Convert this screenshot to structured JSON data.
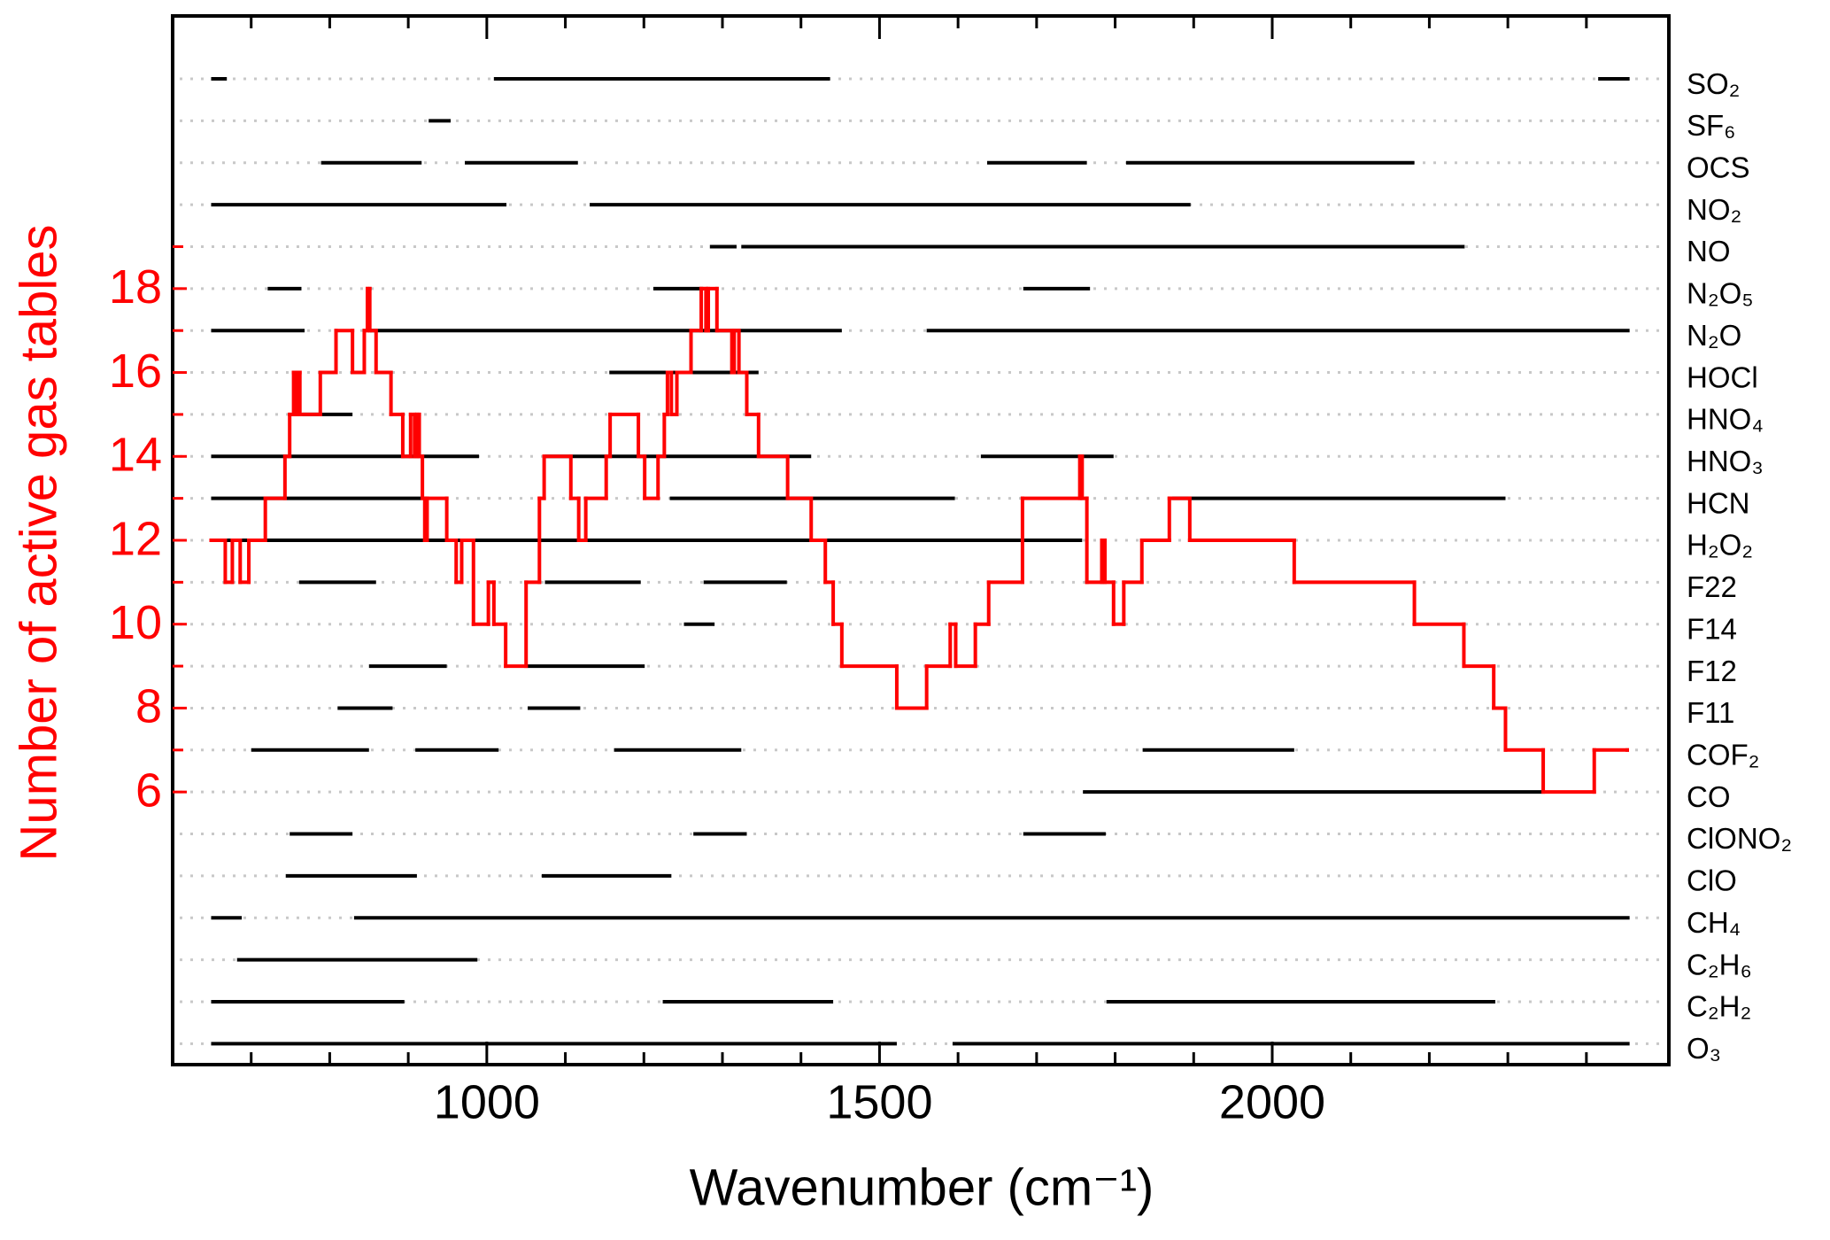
{
  "chart_data": {
    "type": "step",
    "x_label": "Wavenumber (cm⁻¹)",
    "y_label": "Number of active gas tables",
    "xlim": [
      600,
      2505
    ],
    "ylim": [
      -0.5,
      24.5
    ],
    "xticks": [
      1000,
      1500,
      2000
    ],
    "xminor_ticks": [
      700,
      800,
      900,
      1100,
      1200,
      1300,
      1400,
      1600,
      1700,
      1800,
      1900,
      2100,
      2200,
      2300,
      2400
    ],
    "yticks": [
      6,
      8,
      10,
      12,
      14,
      16,
      18
    ],
    "yminor_ticks": [
      7,
      9,
      11,
      13,
      15,
      17,
      19
    ],
    "series": [
      {
        "color": "#ff0000",
        "x": [
          649,
          667,
          676,
          686,
          697,
          718,
          743,
          749,
          754,
          757,
          759,
          762,
          788,
          808,
          829,
          844,
          848,
          851,
          859,
          878,
          893,
          903,
          908,
          911,
          914,
          918,
          921,
          924,
          949,
          961,
          968,
          983,
          1002,
          1009,
          1024,
          1050,
          1067,
          1073,
          1107,
          1117,
          1126,
          1152,
          1157,
          1193,
          1201,
          1218,
          1226,
          1230,
          1235,
          1242,
          1260,
          1273,
          1279,
          1282,
          1293,
          1312,
          1315,
          1321,
          1331,
          1346,
          1383,
          1413,
          1431,
          1441,
          1452,
          1522,
          1560,
          1590,
          1597,
          1622,
          1639,
          1682,
          1755,
          1758,
          1764,
          1783,
          1787,
          1798,
          1811,
          1834,
          1869,
          1895,
          2028,
          2181,
          2244,
          2282,
          2297,
          2345,
          2410,
          2452
        ],
        "values": [
          12,
          11,
          12,
          11,
          12,
          13,
          14,
          15,
          16,
          15,
          16,
          15,
          16,
          17,
          16,
          17,
          18,
          17,
          16,
          15,
          14,
          15,
          14,
          15,
          14,
          13,
          12,
          13,
          12,
          11,
          12,
          10,
          11,
          10,
          9,
          11,
          13,
          14,
          13,
          12,
          13,
          14,
          15,
          14,
          13,
          14,
          15,
          16,
          15,
          16,
          17,
          18,
          17,
          18,
          17,
          16,
          17,
          16,
          15,
          14,
          13,
          12,
          11,
          10,
          9,
          8,
          9,
          10,
          9,
          10,
          11,
          13,
          14,
          13,
          11,
          12,
          11,
          10,
          11,
          12,
          13,
          12,
          11,
          10,
          9,
          8,
          7,
          6,
          7,
          7
        ]
      }
    ],
    "gas_color": "#000000",
    "gases": [
      {
        "name": "SO₂",
        "ranges": [
          [
            649,
            669
          ],
          [
            1009,
            1437
          ],
          [
            2415,
            2455
          ]
        ]
      },
      {
        "name": "SF₆",
        "ranges": [
          [
            926,
            954
          ]
        ]
      },
      {
        "name": "OCS",
        "ranges": [
          [
            789,
            917
          ],
          [
            972,
            1116
          ],
          [
            1637,
            1764
          ],
          [
            1814,
            2181
          ]
        ]
      },
      {
        "name": "NO₂",
        "ranges": [
          [
            649,
            1025
          ],
          [
            1131,
            1896
          ]
        ]
      },
      {
        "name": "NO",
        "ranges": [
          [
            1284,
            1318
          ],
          [
            1324,
            2245
          ]
        ]
      },
      {
        "name": "N₂O₅",
        "ranges": [
          [
            721,
            764
          ],
          [
            1212,
            1276
          ],
          [
            1683,
            1768
          ]
        ]
      },
      {
        "name": "N₂O",
        "ranges": [
          [
            649,
            768
          ],
          [
            851,
            1452
          ],
          [
            1560,
            2455
          ]
        ]
      },
      {
        "name": "HOCl",
        "ranges": [
          [
            1156,
            1346
          ]
        ]
      },
      {
        "name": "HNO₄",
        "ranges": [
          [
            765,
            829
          ]
        ]
      },
      {
        "name": "HNO₃",
        "ranges": [
          [
            649,
            990
          ],
          [
            1074,
            1413
          ],
          [
            1629,
            1798
          ]
        ]
      },
      {
        "name": "HCN",
        "ranges": [
          [
            649,
            917
          ],
          [
            1233,
            1596
          ],
          [
            1872,
            2297
          ]
        ]
      },
      {
        "name": "H₂O₂",
        "ranges": [
          [
            649,
            1758
          ]
        ]
      },
      {
        "name": "F22",
        "ranges": [
          [
            761,
            859
          ],
          [
            1074,
            1196
          ],
          [
            1276,
            1382
          ]
        ]
      },
      {
        "name": "F14",
        "ranges": [
          [
            1251,
            1290
          ]
        ]
      },
      {
        "name": "F12",
        "ranges": [
          [
            850,
            949
          ],
          [
            1052,
            1201
          ]
        ]
      },
      {
        "name": "F11",
        "ranges": [
          [
            810,
            880
          ],
          [
            1052,
            1119
          ]
        ]
      },
      {
        "name": "COF₂",
        "ranges": [
          [
            700,
            850
          ],
          [
            909,
            1015
          ],
          [
            1162,
            1324
          ],
          [
            1835,
            2028
          ]
        ]
      },
      {
        "name": "CO",
        "ranges": [
          [
            1759,
            2343
          ]
        ]
      },
      {
        "name": "ClONO₂",
        "ranges": [
          [
            749,
            829
          ],
          [
            1263,
            1331
          ],
          [
            1683,
            1788
          ]
        ]
      },
      {
        "name": "ClO",
        "ranges": [
          [
            744,
            911
          ],
          [
            1070,
            1235
          ]
        ]
      },
      {
        "name": "CH₄",
        "ranges": [
          [
            649,
            688
          ],
          [
            831,
            2455
          ]
        ]
      },
      {
        "name": "C₂H₆",
        "ranges": [
          [
            682,
            988
          ]
        ]
      },
      {
        "name": "C₂H₂",
        "ranges": [
          [
            649,
            895
          ],
          [
            1224,
            1441
          ],
          [
            1789,
            2284
          ]
        ]
      },
      {
        "name": "O₃",
        "ranges": [
          [
            649,
            1522
          ],
          [
            1593,
            2455
          ]
        ]
      }
    ]
  }
}
